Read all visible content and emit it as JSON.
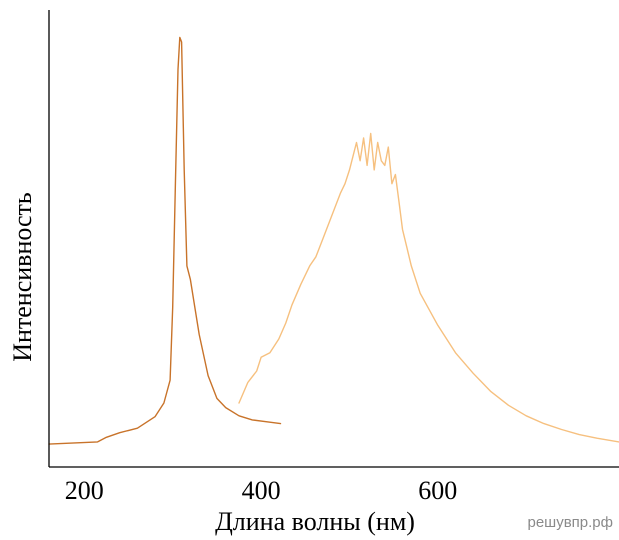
{
  "chart_data": {
    "type": "line",
    "xlabel": "Длина волны (нм)",
    "ylabel": "Интенсивность",
    "xlim": [
      160,
      805
    ],
    "ylim": [
      0,
      100
    ],
    "x_ticks": [
      200,
      400,
      600
    ],
    "y_ticks": [],
    "grid": false,
    "series": [
      {
        "color": "#c8732a",
        "x": [
          160,
          215,
          225,
          240,
          260,
          280,
          290,
          297,
          300,
          303,
          306,
          308,
          310,
          313,
          316,
          320,
          325,
          330,
          340,
          350,
          360,
          375,
          390,
          410,
          422
        ],
        "y": [
          5,
          5.5,
          6.5,
          7.5,
          8.5,
          11,
          14,
          19,
          35,
          62,
          87,
          94,
          93,
          65,
          44,
          41,
          35,
          29,
          20,
          15,
          13,
          11.2,
          10.3,
          9.8,
          9.5
        ]
      },
      {
        "color": "#f6c07f",
        "x": [
          375,
          385,
          395,
          400,
          410,
          420,
          428,
          435,
          445,
          455,
          462,
          470,
          480,
          490,
          495,
          500,
          504,
          508,
          512,
          516,
          520,
          524,
          528,
          532,
          536,
          540,
          544,
          548,
          552,
          556,
          560,
          565,
          570,
          580,
          600,
          620,
          640,
          660,
          680,
          700,
          720,
          740,
          760,
          780,
          805
        ],
        "y": [
          14,
          18.5,
          21,
          24,
          25,
          28,
          31.5,
          35.5,
          40,
          44,
          46,
          50,
          55,
          60,
          62,
          65,
          68,
          71,
          67,
          72,
          66,
          73,
          65,
          71,
          67,
          66,
          70,
          62,
          64,
          58,
          52,
          48,
          44,
          38,
          31,
          25,
          20.5,
          16.5,
          13.5,
          11.2,
          9.5,
          8.2,
          7.1,
          6.3,
          5.5
        ]
      }
    ]
  },
  "watermark": "решувпр.рф"
}
